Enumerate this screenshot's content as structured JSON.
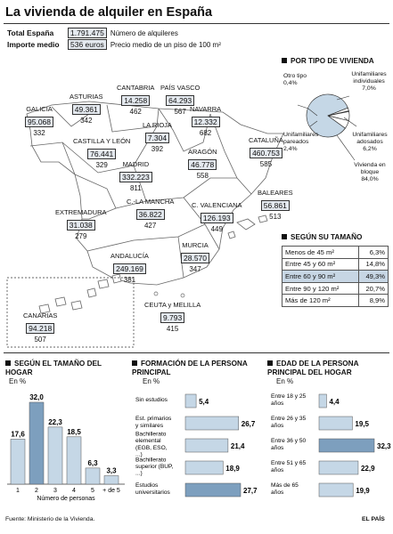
{
  "title": "La vivienda de alquiler en España",
  "totals": {
    "espana_label": "Total España",
    "espana_value": "1.791.475",
    "espana_desc": "Número de alquileres",
    "importe_label": "Importe medio",
    "importe_value": "536 euros",
    "importe_desc": "Precio medio de un piso de 100 m²"
  },
  "regions": [
    {
      "name": "GALICIA",
      "count": "95.068",
      "price": "332"
    },
    {
      "name": "ASTURIAS",
      "count": "49.361",
      "price": "342"
    },
    {
      "name": "CANTABRIA",
      "count": "14.258",
      "price": "462"
    },
    {
      "name": "PAÍS VASCO",
      "count": "64.293",
      "price": "567"
    },
    {
      "name": "NAVARRA",
      "count": "12.332",
      "price": "682"
    },
    {
      "name": "LA RIOJA",
      "count": "7.304",
      "price": "392"
    },
    {
      "name": "CASTILLA Y LEÓN",
      "count": "76.441",
      "price": "329"
    },
    {
      "name": "CATALUÑA",
      "count": "460.753",
      "price": "585"
    },
    {
      "name": "ARAGÓN",
      "count": "46.778",
      "price": "558"
    },
    {
      "name": "MADRID",
      "count": "332.223",
      "price": "811"
    },
    {
      "name": "EXTREMADURA",
      "count": "31.038",
      "price": "279"
    },
    {
      "name": "C.-LA MANCHA",
      "count": "36.822",
      "price": "427"
    },
    {
      "name": "C. VALENCIANA",
      "count": "126.193",
      "price": "449"
    },
    {
      "name": "BALEARES",
      "count": "56.861",
      "price": "513"
    },
    {
      "name": "MURCIA",
      "count": "28.570",
      "price": "347"
    },
    {
      "name": "ANDALUCÍA",
      "count": "249.169",
      "price": "381"
    },
    {
      "name": "CANARIAS",
      "count": "94.218",
      "price": "507"
    },
    {
      "name": "CEUTA y MELILLA",
      "count": "9.793",
      "price": "415"
    }
  ],
  "pie": {
    "title": "POR TIPO DE VIVIENDA",
    "slices": [
      {
        "label": "Vivienda en bloque",
        "value": 84.0,
        "value_text": "84,0%",
        "color": "#c5d7e6"
      },
      {
        "label": "Unifamiliares pareados",
        "value": 2.4,
        "value_text": "2,4%",
        "color": "#ffffff"
      },
      {
        "label": "Otro tipo",
        "value": 0.4,
        "value_text": "0,4%",
        "color": "#ffffff"
      },
      {
        "label": "Unifamiliares individuales",
        "value": 7.0,
        "value_text": "7,0%",
        "color": "#ffffff"
      },
      {
        "label": "Unifamiliares adosados",
        "value": 6.2,
        "value_text": "6,2%",
        "color": "#ffffff"
      }
    ]
  },
  "size_table": {
    "title": "SEGÚN SU TAMAÑO",
    "rows": [
      {
        "label": "Menos de 45 m²",
        "value": "6,3%",
        "highlight": false
      },
      {
        "label": "Entre 45 y 60 m²",
        "value": "14,8%",
        "highlight": false
      },
      {
        "label": "Entre 60 y 90 m²",
        "value": "49,3%",
        "highlight": true
      },
      {
        "label": "Entre 90 y 120 m²",
        "value": "20,7%",
        "highlight": false
      },
      {
        "label": "Más de 120 m²",
        "value": "8,9%",
        "highlight": false
      }
    ]
  },
  "chart_data": [
    {
      "type": "bar",
      "title": "SEGÚN EL TAMAÑO DEL HOGAR",
      "unit": "En %",
      "xlabel": "Número de personas",
      "categories": [
        "1",
        "2",
        "3",
        "4",
        "5",
        "+ de 5"
      ],
      "values": [
        17.6,
        32.0,
        22.3,
        18.5,
        6.3,
        3.3
      ],
      "value_labels": [
        "17,6",
        "32,0",
        "22,3",
        "18,5",
        "6,3",
        "3,3"
      ],
      "highlight_index": 1,
      "ylim": [
        0,
        32
      ],
      "colors": {
        "normal": "#c5d7e6",
        "highlight": "#7d9fbe"
      }
    },
    {
      "type": "bar",
      "orientation": "horizontal",
      "title": "FORMACIÓN DE LA PERSONA PRINCIPAL",
      "unit": "En %",
      "categories": [
        "Sin estudios",
        "Est. primarios y similares",
        "Bachillerato elemental (EGB, ESO, ...)",
        "Bachillerato superior (BUP, ...)",
        "Estudios universitarios"
      ],
      "values": [
        5.4,
        26.7,
        21.4,
        18.9,
        27.7
      ],
      "value_labels": [
        "5,4",
        "26,7",
        "21,4",
        "18,9",
        "27,7"
      ],
      "highlight_index": 4,
      "xlim": [
        0,
        27.7
      ],
      "colors": {
        "normal": "#c5d7e6",
        "highlight": "#7d9fbe"
      }
    },
    {
      "type": "bar",
      "orientation": "horizontal",
      "title": "EDAD DE LA PERSONA PRINCIPAL DEL HOGAR",
      "unit": "En %",
      "categories": [
        "Entre 18 y 25 años",
        "Entre 26 y 35 años",
        "Entre 36 y 50 años",
        "Entre 51 y 65 años",
        "Más de 65 años"
      ],
      "values": [
        4.4,
        19.5,
        32.3,
        22.9,
        19.9
      ],
      "value_labels": [
        "4,4",
        "19,5",
        "32,3",
        "22,9",
        "19,9"
      ],
      "highlight_index": 2,
      "xlim": [
        0,
        32.3
      ],
      "colors": {
        "normal": "#c5d7e6",
        "highlight": "#7d9fbe"
      }
    }
  ],
  "footer": {
    "source": "Fuente: Ministerio de la Vivienda.",
    "brand": "EL PAÍS"
  }
}
